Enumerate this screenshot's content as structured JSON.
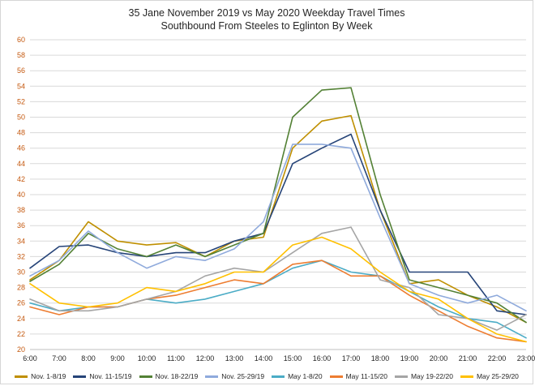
{
  "title": {
    "line1": "35 Jane November 2019 vs May 2020 Weekday Travel Times",
    "line2": "Southbound From Steeles to Eglinton By Week"
  },
  "chart_data": {
    "type": "line",
    "x": [
      "6:00",
      "7:00",
      "8:00",
      "9:00",
      "10:00",
      "11:00",
      "12:00",
      "13:00",
      "14:00",
      "15:00",
      "16:00",
      "17:00",
      "18:00",
      "19:00",
      "20:00",
      "21:00",
      "22:00",
      "23:00"
    ],
    "ylim": [
      20,
      60
    ],
    "ytick_step": 2,
    "grid": true,
    "legend_position": "bottom",
    "ylabel": "",
    "xlabel": "",
    "series": [
      {
        "name": "Nov. 1-8/19",
        "color": "#BF8F00",
        "values": [
          29,
          31.5,
          36.5,
          34,
          33.5,
          33.8,
          32,
          34,
          34.5,
          46,
          49.5,
          50.2,
          38,
          28.5,
          29,
          27,
          25.5,
          23.5
        ]
      },
      {
        "name": "Nov. 11-15/19",
        "color": "#264478",
        "values": [
          30.5,
          33.3,
          33.5,
          32.5,
          32,
          32.5,
          32.5,
          34,
          35,
          44,
          46,
          47.8,
          38,
          30,
          30,
          30,
          25,
          24.5
        ]
      },
      {
        "name": "Nov. 18-22/19",
        "color": "#538135",
        "values": [
          28.8,
          31,
          35,
          33,
          32,
          33.5,
          32,
          33.5,
          35,
          50,
          53.5,
          53.8,
          40,
          29,
          28,
          27,
          26,
          23.5
        ]
      },
      {
        "name": "Nov. 25-29/19",
        "color": "#8FAADC",
        "values": [
          29.5,
          31.5,
          35.3,
          32.5,
          30.5,
          32,
          31.5,
          33,
          36.5,
          46.5,
          46.5,
          46,
          37,
          28.5,
          27,
          26,
          27,
          25
        ]
      },
      {
        "name": "May 1-8/20",
        "color": "#4BACC6",
        "values": [
          26,
          25,
          25.5,
          25.5,
          26.5,
          26,
          26.5,
          27.5,
          28.5,
          30.5,
          31.5,
          30,
          29.5,
          27.5,
          25.5,
          24,
          23.5,
          21.5
        ]
      },
      {
        "name": "May 11-15/20",
        "color": "#ED7D31",
        "values": [
          25.5,
          24.5,
          25.5,
          25.5,
          26.5,
          27,
          28,
          29,
          28.5,
          31,
          31.5,
          29.5,
          29.5,
          27,
          25,
          23,
          21.5,
          21
        ]
      },
      {
        "name": "May 19-22/20",
        "color": "#A5A5A5",
        "values": [
          26.5,
          25,
          25,
          25.5,
          26.5,
          27.5,
          29.5,
          30.5,
          30,
          32.5,
          35,
          35.8,
          29,
          28,
          24.5,
          24,
          22.5,
          24.5
        ]
      },
      {
        "name": "May 25-29/20",
        "color": "#FFC000",
        "values": [
          28.5,
          26,
          25.5,
          26,
          28,
          27.5,
          28.5,
          30,
          30,
          33.5,
          34.5,
          33,
          30,
          27.5,
          26.5,
          24,
          22,
          21
        ]
      }
    ]
  },
  "style": {
    "grid_color": "#d9d9d9",
    "axis_line_color": "#bfbfbf",
    "y_tick_color": "#c55a11",
    "x_tick_color": "#262626",
    "line_width": 1.6
  }
}
